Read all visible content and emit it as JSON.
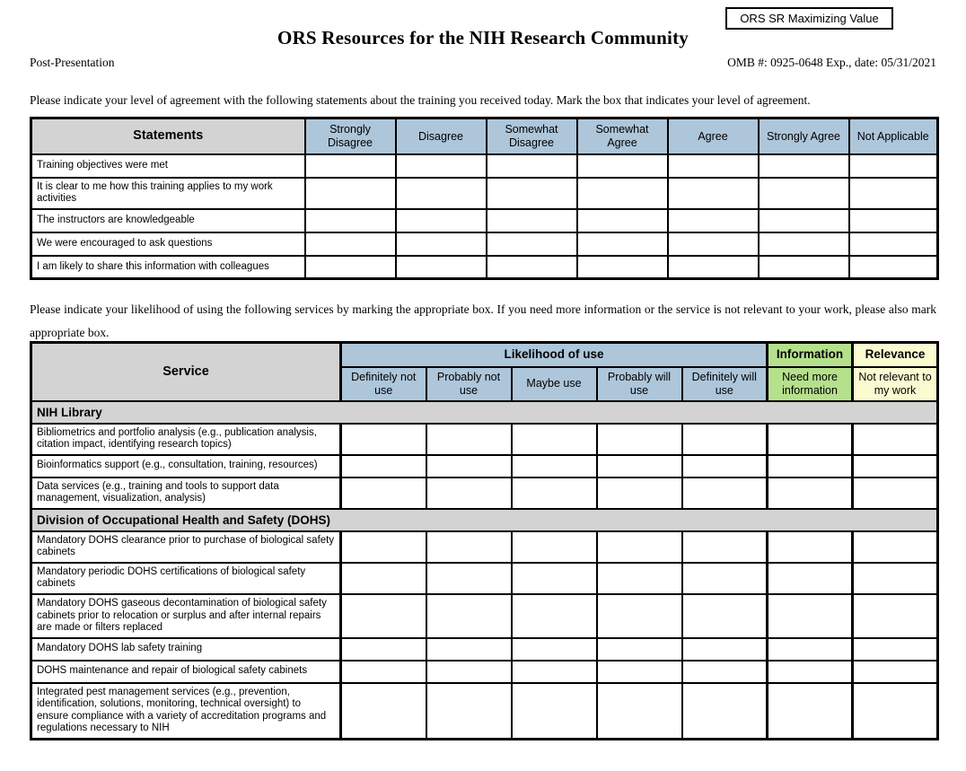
{
  "header": {
    "tag_box_label": "ORS SR Maximizing Value",
    "title": "ORS Resources for the NIH Research Community",
    "subtitle_left": "Post-Presentation",
    "omb": "OMB #: 0925-0648 Exp., date: 05/31/2021"
  },
  "intro": {
    "agreement": "Please indicate your level of agreement with the following statements about the training you received today. Mark the box that indicates your level of agreement.",
    "services": "Please indicate your likelihood of using the following services by marking the appropriate box. If you need more information or the service is not relevant to your work, please also mark appropriate box."
  },
  "agreement_table": {
    "corner_header": "Statements",
    "columns": [
      "Strongly Disagree",
      "Disagree",
      "Somewhat Disagree",
      "Somewhat Agree",
      "Agree",
      "Strongly Agree",
      "Not Applicable"
    ],
    "rows": [
      "Training objectives were met",
      "It is clear to me how this training applies to my work activities",
      "The instructors are knowledgeable",
      "We were encouraged to ask questions",
      "I am likely to share this information with colleagues"
    ]
  },
  "services_table": {
    "corner_header": "Service",
    "group_headers": [
      "Likelihood of use",
      "Information",
      "Relevance"
    ],
    "columns": [
      "Definitely not use",
      "Probably not use",
      "Maybe use",
      "Probably will use",
      "Definitely will use",
      "Need more information",
      "Not relevant to my work"
    ],
    "sections": [
      {
        "title": "NIH Library",
        "rows": [
          "Bibliometrics and portfolio analysis (e.g., publication analysis, citation impact, identifying research topics)",
          "Bioinformatics support (e.g., consultation, training, resources)",
          "Data services (e.g., training and tools to support data management, visualization, analysis)"
        ]
      },
      {
        "title": "Division of Occupational Health and Safety (DOHS)",
        "rows": [
          "Mandatory DOHS clearance prior to purchase of biological safety cabinets",
          "Mandatory periodic DOHS certifications of biological safety cabinets",
          "Mandatory DOHS gaseous decontamination of biological safety cabinets prior to relocation or surplus and after internal repairs are made or filters replaced",
          "Mandatory DOHS lab safety training",
          "DOHS maintenance and repair of biological safety cabinets",
          "Integrated pest management services (e.g., prevention, identification, solutions, monitoring, technical oversight) to ensure compliance with a variety of accreditation programs and regulations necessary to NIH"
        ]
      }
    ]
  },
  "colors": {
    "header_blue": "#aec6da",
    "header_green": "#b5e08c",
    "header_yellow": "#fbfbd2",
    "header_gray": "#d3d3d3"
  }
}
